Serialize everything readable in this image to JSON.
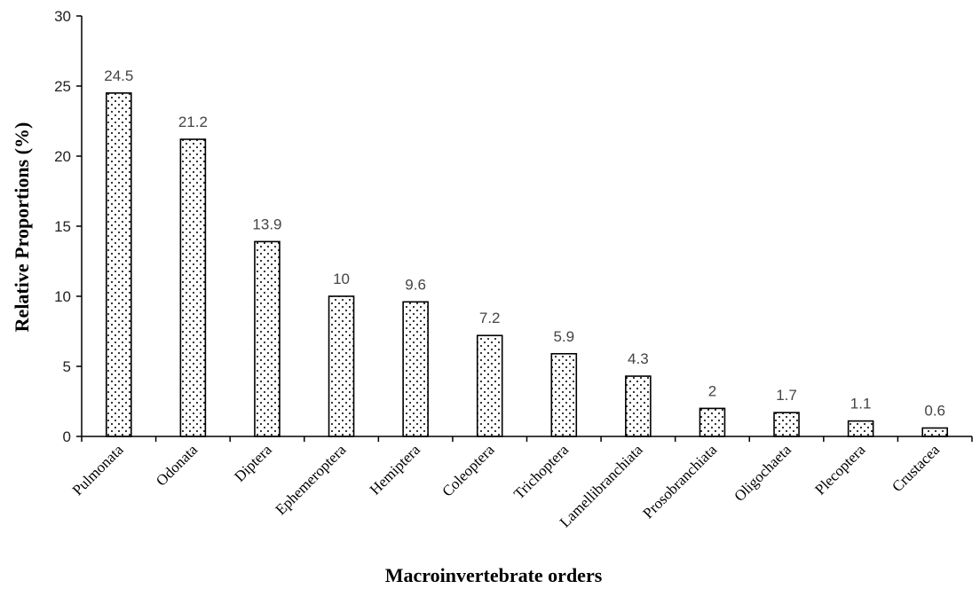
{
  "chart_data": {
    "type": "bar",
    "title": "",
    "xlabel": "Macroinvertebrate orders",
    "ylabel": "Relative Proportions (%)",
    "ylim": [
      0,
      30
    ],
    "yticks": [
      0,
      5,
      10,
      15,
      20,
      25,
      30
    ],
    "grid": false,
    "legend": "none",
    "bar_fill": "dotted",
    "colors": {
      "bar_stroke": "#000000",
      "bar_fill_background": "#ffffff",
      "dot": "#000000"
    },
    "categories": [
      "Pulmonata",
      "Odonata",
      "Diptera",
      "Ephemeroptera",
      "Hemiptera",
      "Coleoptera",
      "Trichoptera",
      "Lamellibranchiata",
      "Prosobranchiata",
      "Oligochaeta",
      "Plecoptera",
      "Crustacea"
    ],
    "values": [
      24.5,
      21.2,
      13.9,
      10,
      9.6,
      7.2,
      5.9,
      4.3,
      2,
      1.7,
      1.1,
      0.6
    ],
    "data_labels": [
      "24.5",
      "21.2",
      "13.9",
      "10",
      "9.6",
      "7.2",
      "5.9",
      "4.3",
      "2",
      "1.7",
      "1.1",
      "0.6"
    ]
  }
}
